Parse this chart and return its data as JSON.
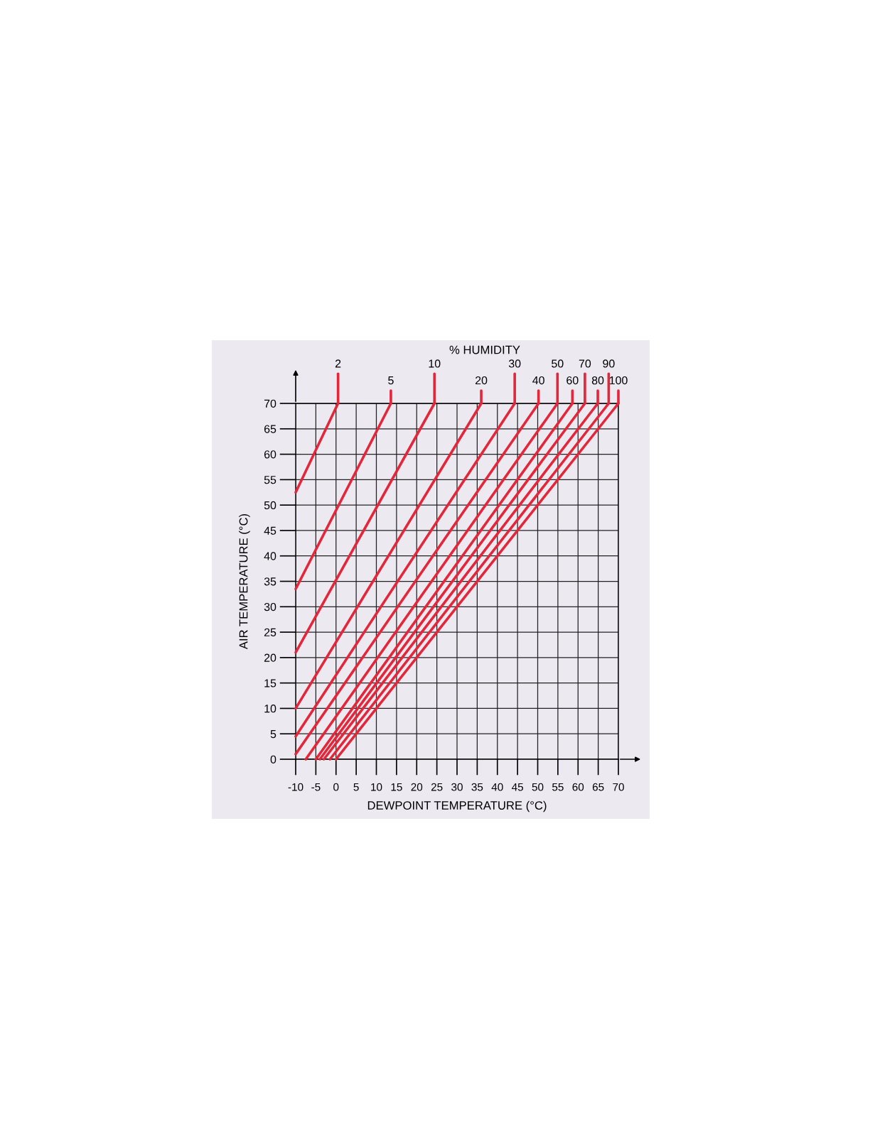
{
  "chart_data": {
    "type": "line",
    "title": "% HUMIDITY",
    "xlabel": "DEWPOINT TEMPERATURE (°C)",
    "ylabel": "AIR TEMPERATURE (°C)",
    "xlim": [
      -10,
      70
    ],
    "xticks": [
      -10,
      -5,
      0,
      5,
      10,
      15,
      20,
      25,
      30,
      35,
      40,
      45,
      50,
      55,
      60,
      65,
      70
    ],
    "ylim": [
      0,
      70
    ],
    "yticks": [
      0,
      5,
      10,
      15,
      20,
      25,
      30,
      35,
      40,
      45,
      50,
      55,
      60,
      65,
      70
    ],
    "grid": true,
    "legend": false,
    "marker": "none",
    "line_style": "solid",
    "series": [
      {
        "name": "2",
        "color": "#e3263a",
        "x": [
          -10,
          0.5
        ],
        "values": [
          52.5,
          70
        ]
      },
      {
        "name": "5",
        "color": "#e3263a",
        "x": [
          -10,
          13.6
        ],
        "values": [
          33.5,
          70
        ]
      },
      {
        "name": "10",
        "color": "#e3263a",
        "x": [
          -10,
          24.4
        ],
        "values": [
          21,
          70
        ]
      },
      {
        "name": "20",
        "color": "#e3263a",
        "x": [
          -10,
          36
        ],
        "values": [
          10,
          70
        ]
      },
      {
        "name": "30",
        "color": "#e3263a",
        "x": [
          -10,
          44.3
        ],
        "values": [
          4.5,
          70
        ]
      },
      {
        "name": "40",
        "color": "#e3263a",
        "x": [
          -10,
          50.2
        ],
        "values": [
          1,
          70
        ]
      },
      {
        "name": "50",
        "color": "#e3263a",
        "x": [
          -7.5,
          54.9
        ],
        "values": [
          0,
          70
        ]
      },
      {
        "name": "60",
        "color": "#e3263a",
        "x": [
          -5,
          58.6
        ],
        "values": [
          0,
          70
        ]
      },
      {
        "name": "70",
        "color": "#e3263a",
        "x": [
          -4,
          61.7
        ],
        "values": [
          0,
          70
        ]
      },
      {
        "name": "80",
        "color": "#e3263a",
        "x": [
          -3,
          64.9
        ],
        "values": [
          0,
          70
        ]
      },
      {
        "name": "90",
        "color": "#e3263a",
        "x": [
          -1.5,
          67.6
        ],
        "values": [
          0,
          70
        ]
      },
      {
        "name": "100",
        "color": "#e3263a",
        "x": [
          0,
          70
        ],
        "values": [
          0,
          70
        ]
      }
    ]
  }
}
